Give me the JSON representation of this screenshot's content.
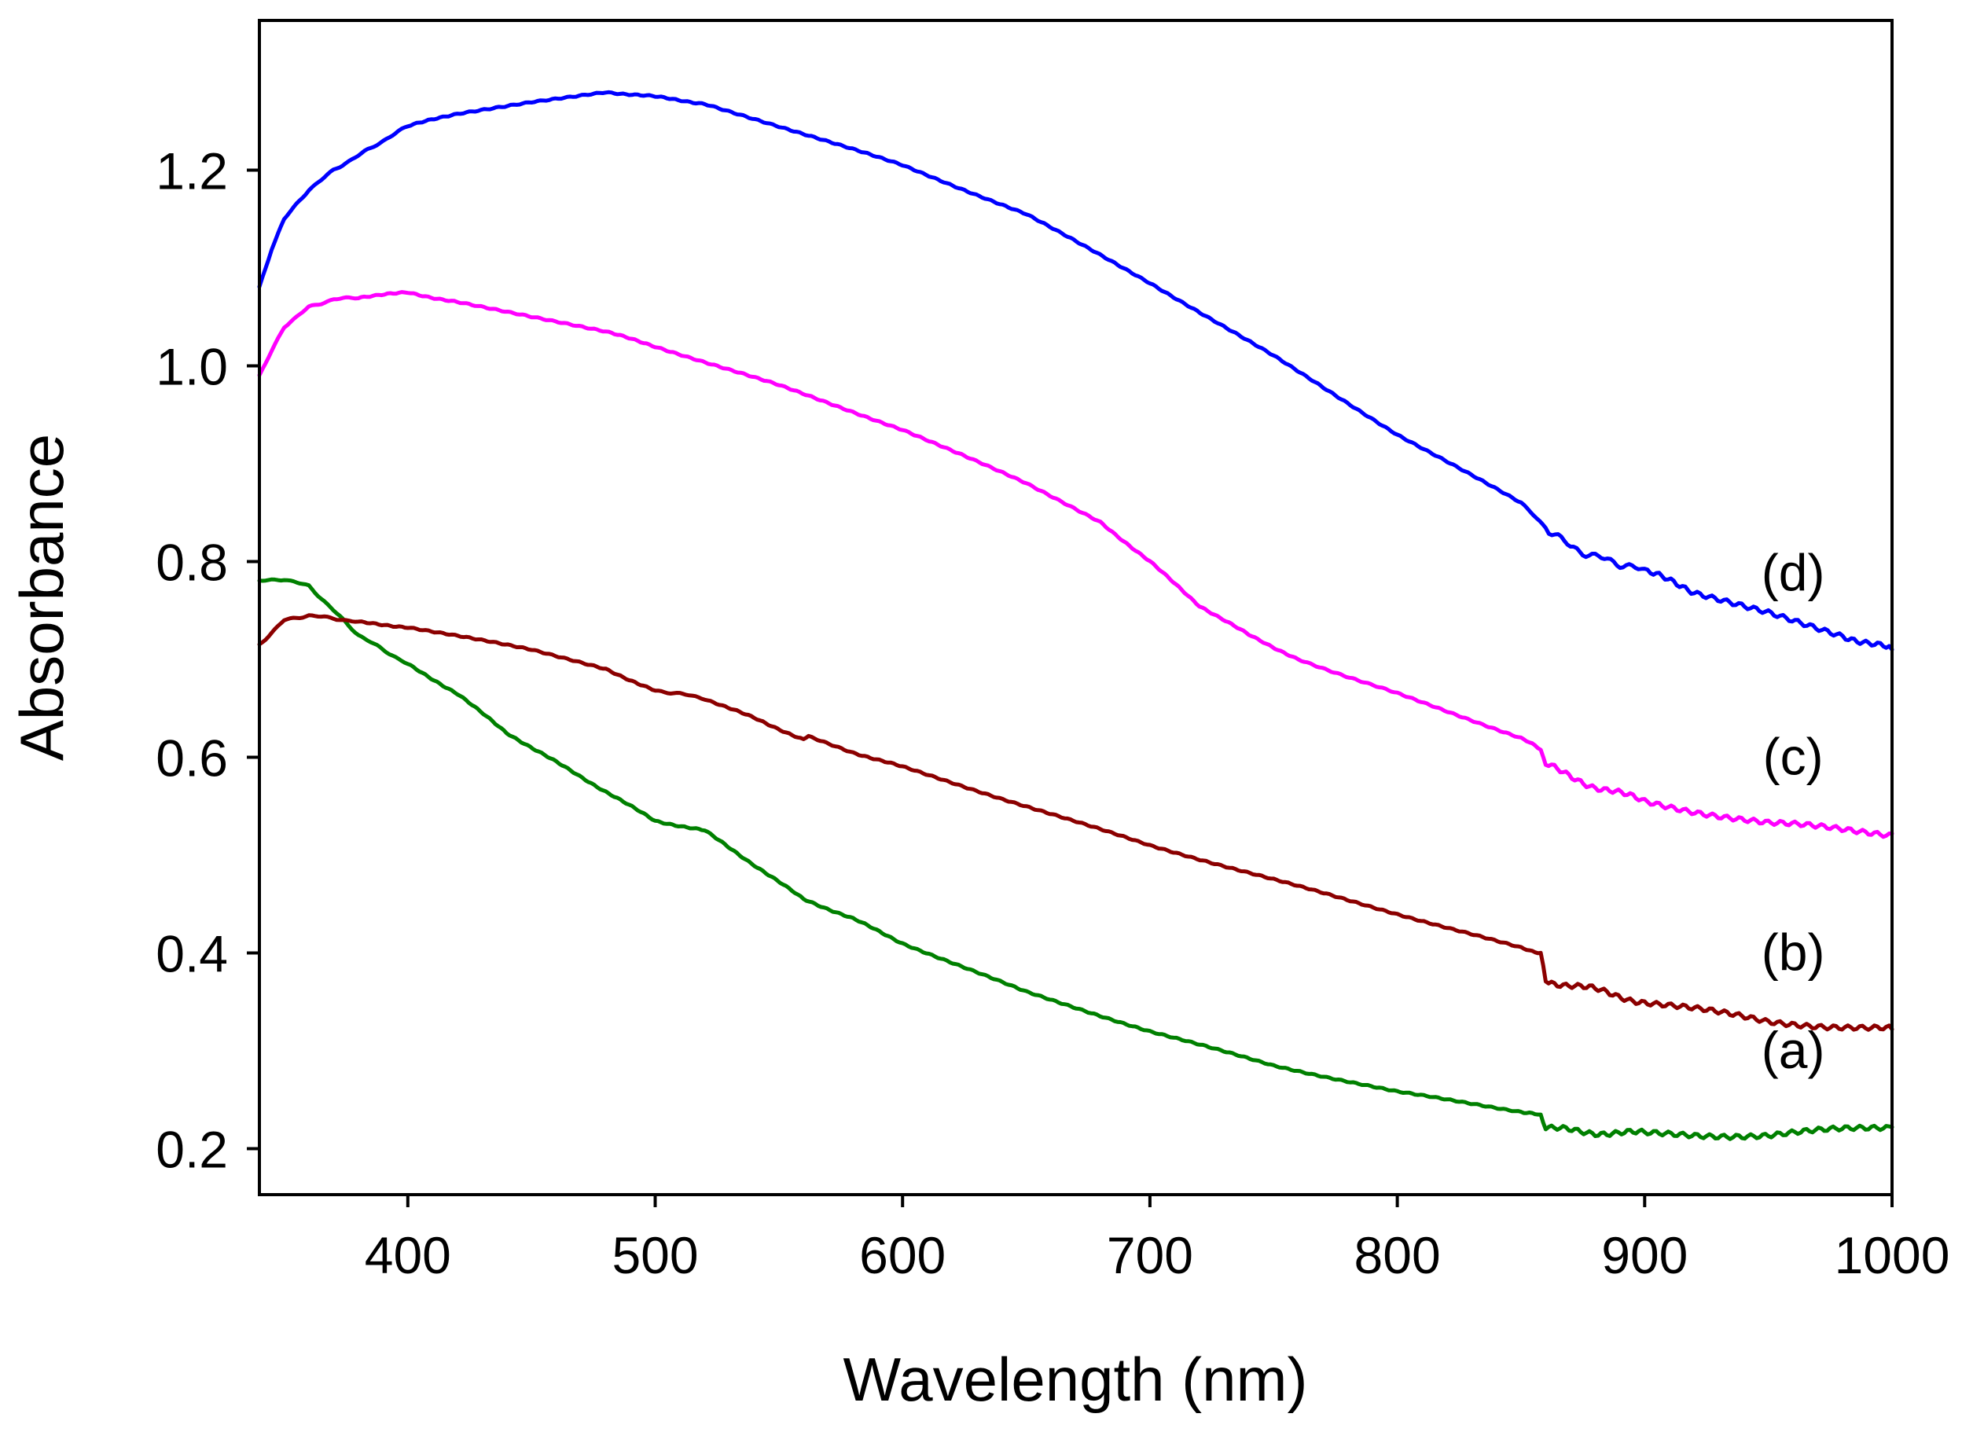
{
  "chart_data": {
    "type": "line",
    "title": "",
    "xlabel": "Wavelength (nm)",
    "ylabel": "Absorbance",
    "xlim": [
      340,
      1000
    ],
    "ylim": [
      0.153,
      1.353
    ],
    "xticks": [
      400,
      500,
      600,
      700,
      800,
      900,
      1000
    ],
    "yticks": [
      0.2,
      0.4,
      0.6,
      0.8,
      1.0,
      1.2
    ],
    "xtick_labels": [
      "400",
      "500",
      "600",
      "700",
      "800",
      "900",
      "1000"
    ],
    "ytick_labels": [
      "0.2",
      "0.4",
      "0.6",
      "0.8",
      "1.0",
      "1.2"
    ],
    "grid": false,
    "legend": "none",
    "series": [
      {
        "name": "(a)",
        "color": "#008000",
        "x": [
          340,
          350,
          360,
          370,
          380,
          390,
          400,
          420,
          440,
          460,
          480,
          500,
          520,
          540,
          560,
          580,
          600,
          650,
          700,
          750,
          800,
          850,
          858,
          860,
          880,
          900,
          950,
          1000
        ],
        "y": [
          0.78,
          0.782,
          0.775,
          0.75,
          0.725,
          0.71,
          0.695,
          0.665,
          0.625,
          0.595,
          0.565,
          0.535,
          0.525,
          0.49,
          0.455,
          0.435,
          0.41,
          0.36,
          0.32,
          0.285,
          0.258,
          0.238,
          0.234,
          0.22,
          0.217,
          0.215,
          0.214,
          0.222
        ]
      },
      {
        "name": "(b)",
        "color": "#8B0000",
        "x": [
          340,
          350,
          360,
          370,
          380,
          400,
          450,
          480,
          500,
          510,
          520,
          540,
          560,
          562,
          580,
          600,
          650,
          700,
          750,
          800,
          850,
          858,
          860,
          880,
          900,
          950,
          1000
        ],
        "y": [
          0.715,
          0.74,
          0.745,
          0.742,
          0.738,
          0.733,
          0.71,
          0.69,
          0.668,
          0.665,
          0.66,
          0.64,
          0.618,
          0.622,
          0.605,
          0.59,
          0.55,
          0.51,
          0.475,
          0.44,
          0.405,
          0.4,
          0.372,
          0.362,
          0.35,
          0.33,
          0.322
        ]
      },
      {
        "name": "(c)",
        "color": "#FF00FF",
        "x": [
          340,
          350,
          360,
          370,
          380,
          400,
          420,
          450,
          480,
          500,
          550,
          600,
          650,
          680,
          700,
          720,
          740,
          760,
          800,
          850,
          858,
          860,
          880,
          900,
          950,
          1000
        ],
        "y": [
          0.99,
          1.04,
          1.06,
          1.068,
          1.07,
          1.075,
          1.065,
          1.05,
          1.035,
          1.02,
          0.98,
          0.935,
          0.88,
          0.84,
          0.8,
          0.755,
          0.725,
          0.7,
          0.665,
          0.62,
          0.608,
          0.592,
          0.57,
          0.555,
          0.532,
          0.522
        ]
      },
      {
        "name": "(d)",
        "color": "#0000FF",
        "x": [
          340,
          345,
          350,
          360,
          370,
          380,
          390,
          400,
          420,
          450,
          480,
          500,
          520,
          550,
          600,
          650,
          700,
          750,
          800,
          850,
          860,
          870,
          880,
          890,
          900,
          920,
          950,
          980,
          1000
        ],
        "y": [
          1.08,
          1.12,
          1.15,
          1.18,
          1.2,
          1.215,
          1.23,
          1.245,
          1.258,
          1.27,
          1.28,
          1.275,
          1.268,
          1.245,
          1.205,
          1.155,
          1.085,
          1.01,
          0.93,
          0.86,
          0.835,
          0.815,
          0.805,
          0.798,
          0.79,
          0.77,
          0.75,
          0.725,
          0.71
        ]
      }
    ]
  }
}
